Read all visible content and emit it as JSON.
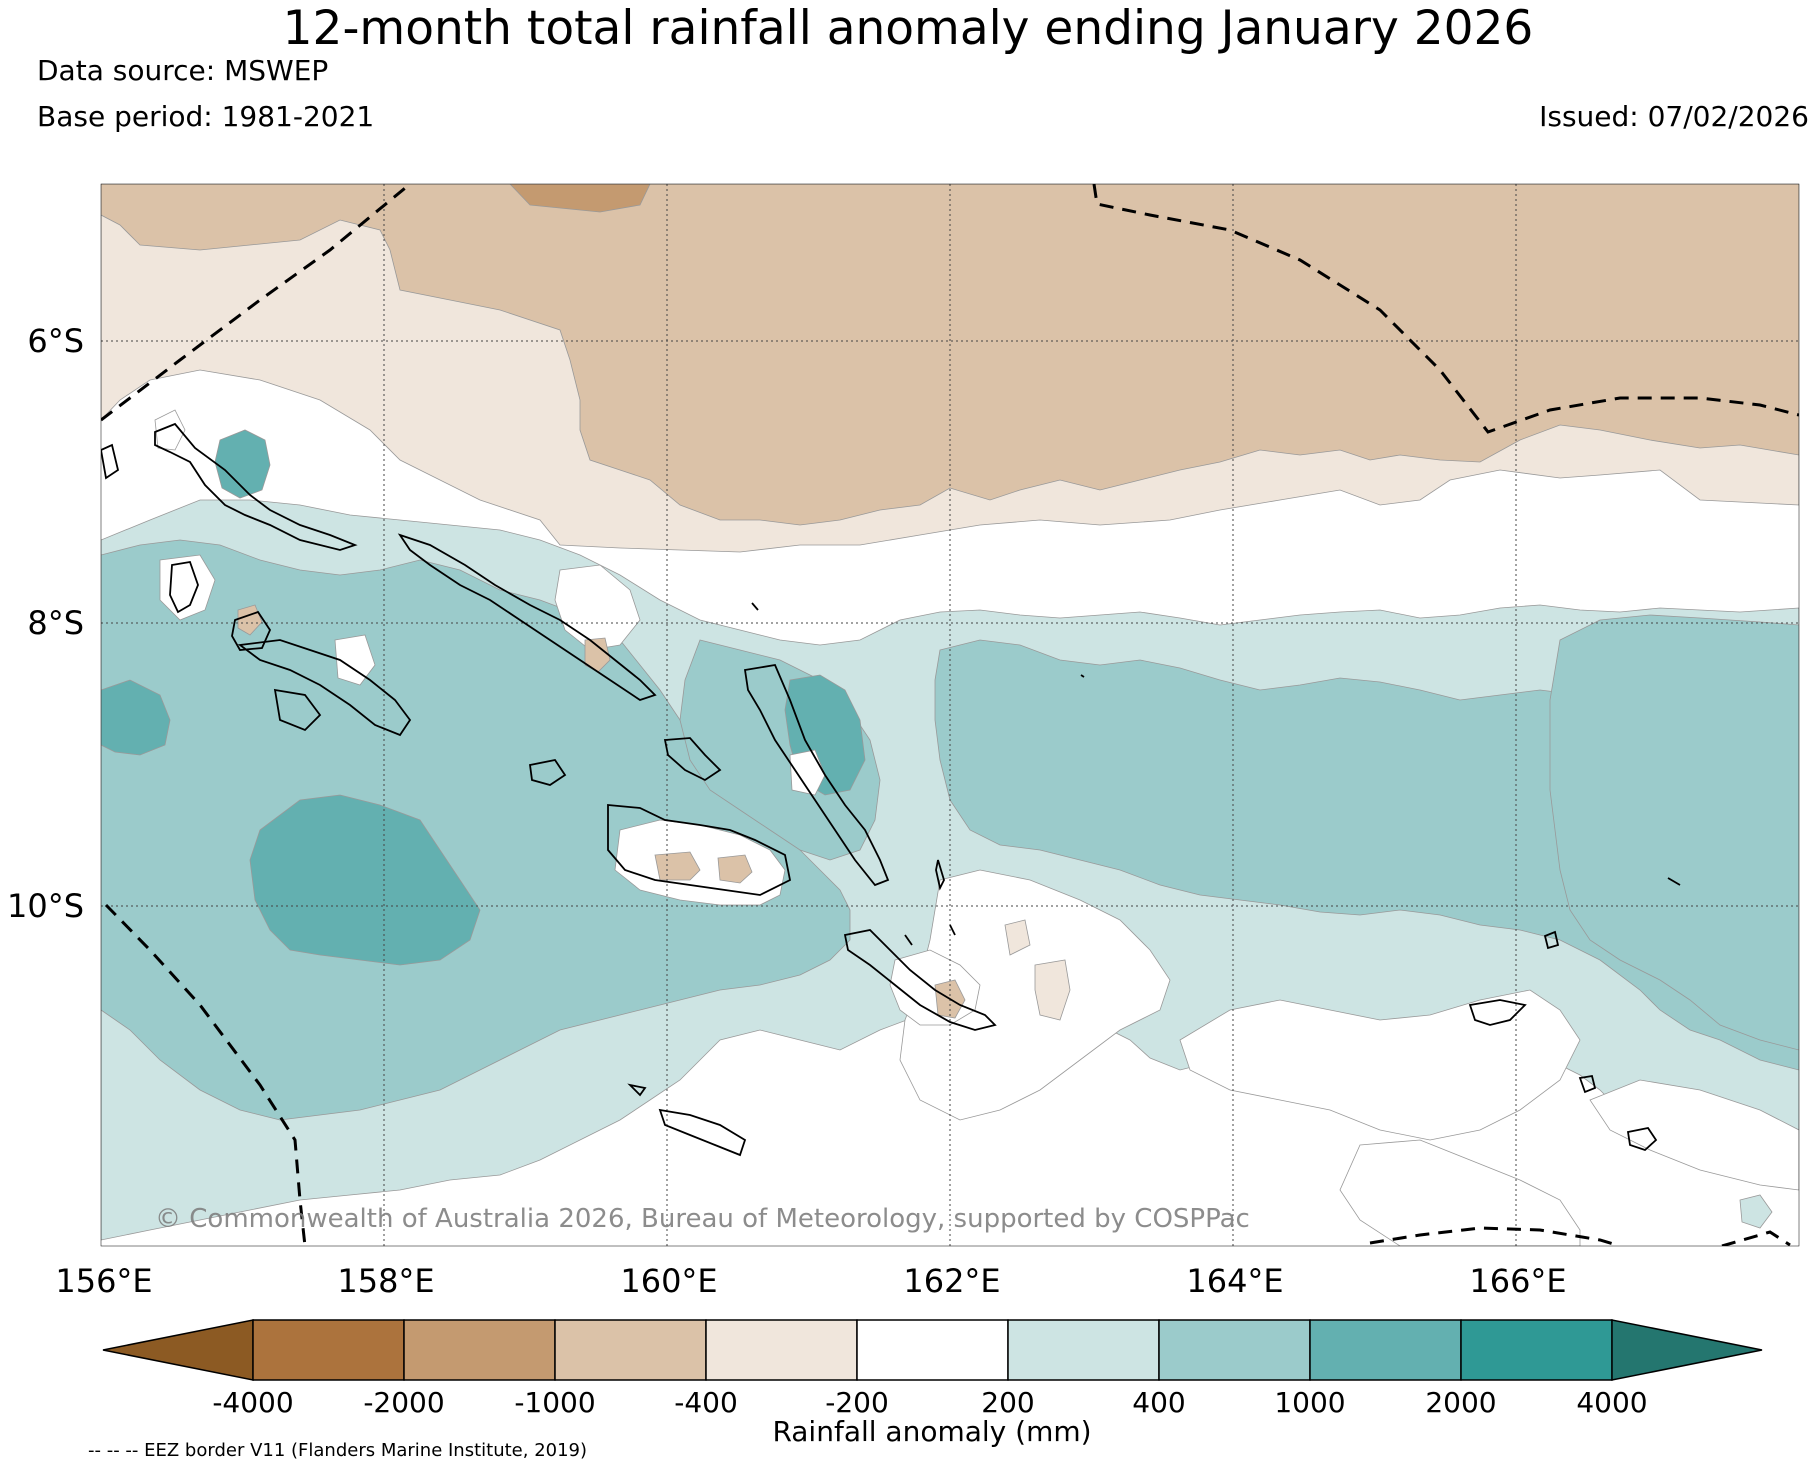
{
  "title": "12-month total rainfall anomaly ending January 2026",
  "data_source": "Data source: MSWEP",
  "base_period": "Base period: 1981-2021",
  "issued": "Issued: 07/02/2026",
  "map": {
    "lon_range": [
      156,
      168
    ],
    "lat_range": [
      -13.5,
      -4.9
    ],
    "lon_ticks": [
      "156°E",
      "158°E",
      "160°E",
      "162°E",
      "164°E",
      "166°E"
    ],
    "lat_ticks": [
      "6°S",
      "8°S",
      "10°S"
    ],
    "copyright": "© Commonwealth of Australia 2026, Bureau of Meteorology, supported by COSPPac",
    "regions": [
      {
        "name": "Northern dry band",
        "anomaly_class": "-1000 to -400"
      },
      {
        "name": "North-west Solomon Islands",
        "anomaly_class": "400 to 1000"
      },
      {
        "name": "Central-east wet band",
        "anomaly_class": "400 to 1000"
      },
      {
        "name": "Guadalcanal north coast",
        "anomaly_class": "-400 to -200"
      }
    ]
  },
  "colorbar": {
    "tick_labels": [
      "-4000",
      "-2000",
      "-1000",
      "-400",
      "-200",
      "200",
      "400",
      "1000",
      "2000",
      "4000"
    ],
    "colors": [
      "#8c5a23",
      "#ac733d",
      "#c49a70",
      "#dbc2a8",
      "#f0e6dc",
      "#ffffff",
      "#cde4e3",
      "#9bcbcb",
      "#63b0b0",
      "#2f9995",
      "#24766f"
    ],
    "label": "Rainfall anomaly (mm)"
  },
  "footnote": "-- -- -- EEZ border V11 (Flanders Marine Institute, 2019)"
}
